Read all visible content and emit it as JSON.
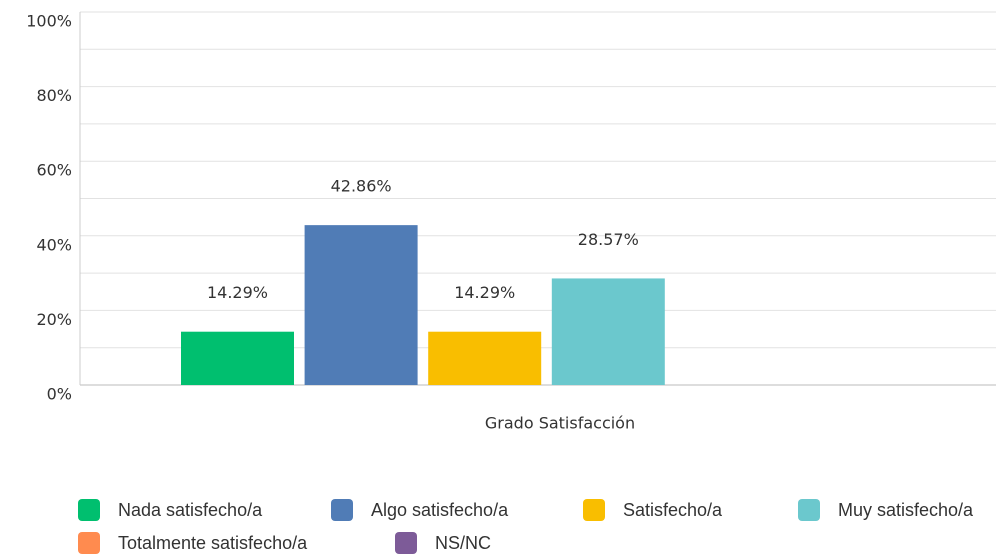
{
  "chart_data": {
    "type": "bar",
    "x_label": "Grado Satisfacción",
    "categories": [
      "Grado Satisfacción"
    ],
    "series": [
      {
        "name": "Nada satisfecho/a",
        "color": "#00bf6f",
        "values": [
          14.29
        ],
        "value_labels": [
          "14.29%"
        ]
      },
      {
        "name": "Algo satisfecho/a",
        "color": "#507cb6",
        "values": [
          42.86
        ],
        "value_labels": [
          "42.86%"
        ]
      },
      {
        "name": "Satisfecho/a",
        "color": "#f9be00",
        "values": [
          14.29
        ],
        "value_labels": [
          "14.29%"
        ]
      },
      {
        "name": "Muy satisfecho/a",
        "color": "#6bc8cd",
        "values": [
          28.57
        ],
        "value_labels": [
          "28.57%"
        ]
      },
      {
        "name": "Totalmente satisfecho/a",
        "color": "#ff8b4f",
        "values": [
          0
        ],
        "value_labels": [
          null
        ]
      },
      {
        "name": "NS/NC",
        "color": "#7d5b98",
        "values": [
          0
        ],
        "value_labels": [
          null
        ]
      }
    ],
    "ylim": [
      0,
      100
    ],
    "yticks": [
      {
        "value": 0,
        "label": "0%"
      },
      {
        "value": 20,
        "label": "20%"
      },
      {
        "value": 40,
        "label": "40%"
      },
      {
        "value": 60,
        "label": "60%"
      },
      {
        "value": 80,
        "label": "80%"
      },
      {
        "value": 100,
        "label": "100%"
      }
    ],
    "minor_yticks": [
      10,
      30,
      50,
      70,
      90
    ],
    "grid": true
  }
}
